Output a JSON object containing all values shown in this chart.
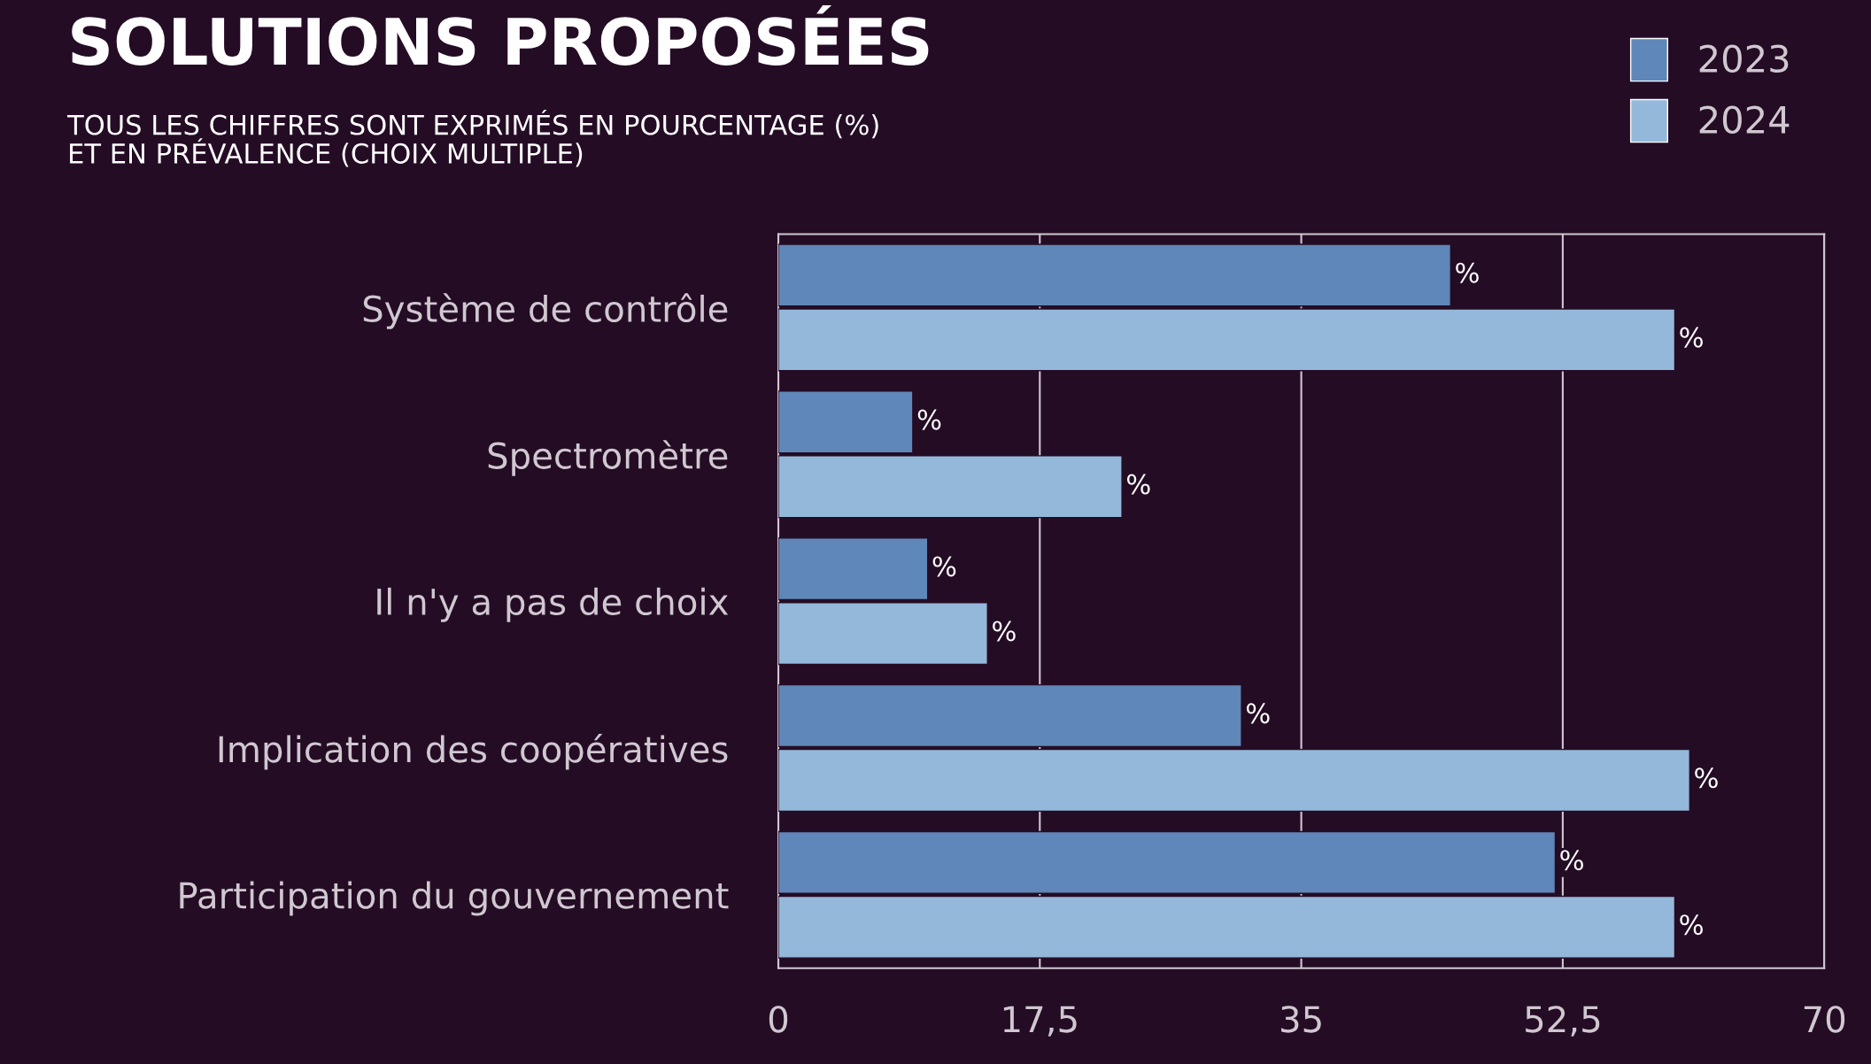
{
  "chart_data": {
    "type": "bar",
    "orientation": "horizontal",
    "title": "SOLUTIONS PROPOSÉES",
    "subtitle": "TOUS LES CHIFFRES SONT EXPRIMÉS EN POURCENTAGE (%)\nET EN PRÉVALENCE (CHOIX MULTIPLE)",
    "categories": [
      "Système de contrôle",
      "Spectromètre",
      "Il n'y a pas de choix",
      "Implication des coopératives",
      "Participation du gouvernement"
    ],
    "series": [
      {
        "name": "2023",
        "color": "#5f87b9",
        "values": [
          45,
          9,
          10,
          31,
          52
        ],
        "value_labels": [
          "%",
          "%",
          "%",
          "%",
          "%"
        ]
      },
      {
        "name": "2024",
        "color": "#94b8da",
        "values": [
          60,
          23,
          14,
          61,
          60
        ],
        "value_labels": [
          "%",
          "%",
          "%",
          "%",
          "%"
        ]
      }
    ],
    "xlim": [
      0,
      70
    ],
    "xticks": [
      0,
      {
        "value": 17.5,
        "label": "17,5"
      },
      35,
      {
        "value": 52.5,
        "label": "52,5"
      },
      70
    ],
    "grid": "x",
    "legend": "top right"
  }
}
